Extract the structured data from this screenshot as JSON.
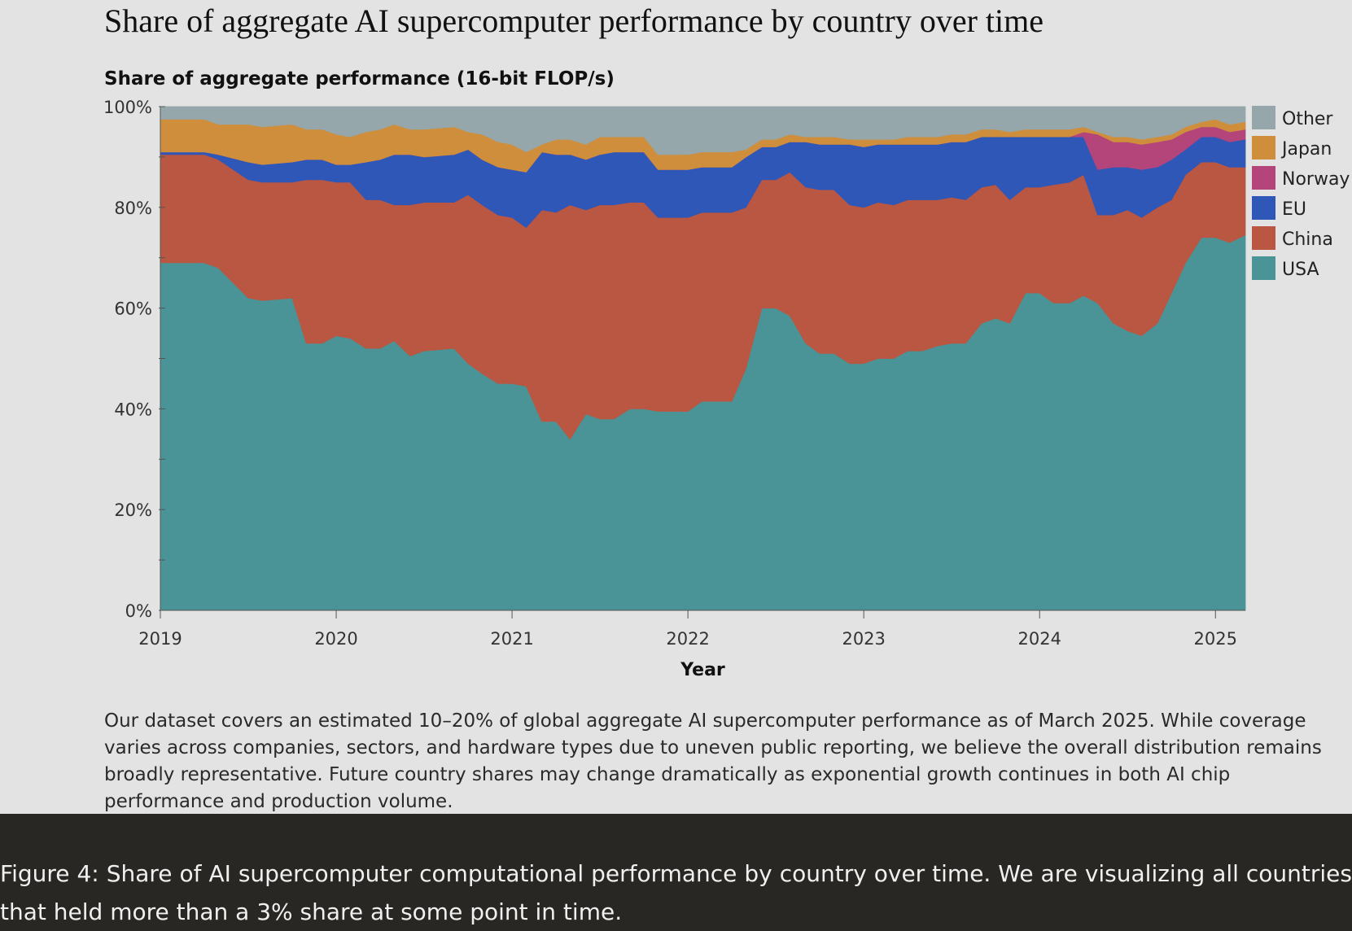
{
  "header": {
    "title": "Share of aggregate AI supercomputer performance by country over time"
  },
  "chart_data": {
    "type": "area",
    "stacked": true,
    "title": "Share of aggregate AI supercomputer performance by country over time",
    "ylabel": "Share of aggregate performance (16-bit FLOP/s)",
    "xlabel": "Year",
    "xlim": [
      2019.0,
      2025.17
    ],
    "ylim": [
      0,
      100
    ],
    "x_ticks": [
      "2019",
      "2020",
      "2021",
      "2022",
      "2023",
      "2024",
      "2025"
    ],
    "y_ticks": [
      "0%",
      "20%",
      "40%",
      "60%",
      "80%",
      "100%"
    ],
    "legend_position": "right",
    "grid": false,
    "x": [
      2019.0,
      2019.25,
      2019.33,
      2019.5,
      2019.58,
      2019.75,
      2019.83,
      2019.92,
      2020.0,
      2020.08,
      2020.17,
      2020.25,
      2020.33,
      2020.42,
      2020.5,
      2020.67,
      2020.75,
      2020.83,
      2020.92,
      2021.0,
      2021.08,
      2021.17,
      2021.25,
      2021.33,
      2021.42,
      2021.5,
      2021.58,
      2021.67,
      2021.75,
      2021.83,
      2022.0,
      2022.08,
      2022.25,
      2022.33,
      2022.42,
      2022.5,
      2022.58,
      2022.67,
      2022.75,
      2022.83,
      2022.92,
      2023.0,
      2023.08,
      2023.17,
      2023.25,
      2023.33,
      2023.42,
      2023.5,
      2023.58,
      2023.67,
      2023.75,
      2023.83,
      2023.92,
      2024.0,
      2024.08,
      2024.17,
      2024.25,
      2024.33,
      2024.42,
      2024.5,
      2024.58,
      2024.67,
      2024.75,
      2024.83,
      2024.92,
      2025.0,
      2025.08,
      2025.17
    ],
    "series": [
      {
        "name": "USA",
        "color": "#4a9396",
        "values": [
          69,
          69,
          68,
          62,
          61.5,
          62,
          53,
          53,
          54.5,
          54,
          52,
          52,
          53.5,
          50.5,
          51.5,
          52,
          49,
          47,
          45,
          45,
          44.5,
          37.5,
          37.5,
          34,
          39,
          38,
          38,
          40,
          40,
          39.5,
          39.5,
          41.5,
          41.5,
          48,
          60,
          60,
          58.5,
          53,
          51,
          51,
          49,
          49,
          50,
          50,
          51.5,
          51.5,
          52.5,
          53,
          53,
          57,
          58,
          57,
          63,
          63,
          61,
          61,
          62.5,
          61,
          57,
          55.5,
          54.5,
          57,
          63,
          69,
          74,
          74,
          73,
          74.5
        ]
      },
      {
        "name": "China",
        "color": "#b95742",
        "values": [
          21.5,
          21.5,
          21.5,
          23.5,
          23.5,
          23,
          32.5,
          32.5,
          30.5,
          31,
          29.5,
          29.5,
          27,
          30,
          29.5,
          29,
          33.5,
          33.5,
          33.5,
          33,
          31.5,
          42,
          41.5,
          46.5,
          40.5,
          42.5,
          42.5,
          41,
          41,
          38.5,
          38.5,
          37.5,
          37.5,
          32,
          25.5,
          25.5,
          28.5,
          31,
          32.5,
          32.5,
          31.5,
          31,
          31,
          30.5,
          30,
          30,
          29,
          29,
          28.5,
          27,
          26.5,
          24.5,
          21,
          21,
          23.5,
          24,
          24,
          17.5,
          21.5,
          24,
          23.5,
          23,
          18.5,
          17.5,
          15,
          15,
          15,
          13.5
        ]
      },
      {
        "name": "EU",
        "color": "#2e57b8",
        "values": [
          0.5,
          0.5,
          1,
          3.5,
          3.5,
          4,
          4,
          4,
          3.5,
          3.5,
          7.5,
          8,
          10,
          10,
          9,
          9.5,
          9,
          9,
          9.5,
          9.5,
          11,
          11.5,
          11.5,
          10,
          10,
          10,
          10.5,
          10,
          10,
          9.5,
          9.5,
          9,
          9,
          10,
          6.5,
          6.5,
          6,
          9,
          9,
          9,
          12,
          12,
          11.5,
          12,
          11,
          11,
          11,
          11,
          11.5,
          10,
          9.5,
          12.5,
          10,
          10,
          9.5,
          9,
          7.5,
          9,
          9.5,
          8.5,
          9.5,
          8,
          8,
          5,
          5,
          5,
          5,
          5.5
        ]
      },
      {
        "name": "Norway",
        "color": "#b3457b",
        "values": [
          0,
          0,
          0,
          0,
          0,
          0,
          0,
          0,
          0,
          0,
          0,
          0,
          0,
          0,
          0,
          0,
          0,
          0,
          0,
          0,
          0,
          0,
          0,
          0,
          0,
          0,
          0,
          0,
          0,
          0,
          0,
          0,
          0,
          0,
          0,
          0,
          0,
          0,
          0,
          0,
          0,
          0,
          0,
          0,
          0,
          0,
          0,
          0,
          0,
          0,
          0,
          0,
          0,
          0,
          0,
          0,
          1,
          7,
          5,
          5,
          5,
          5,
          4,
          3.5,
          2,
          2,
          2,
          2
        ]
      },
      {
        "name": "Japan",
        "color": "#cf8e3c",
        "values": [
          6.5,
          6.5,
          6,
          7.5,
          7.5,
          7.5,
          6,
          6,
          6,
          5.5,
          6,
          6,
          6,
          5,
          5.5,
          5.5,
          3.5,
          5,
          5,
          5,
          4,
          1.5,
          3,
          3,
          3,
          3.5,
          3,
          3,
          3,
          3,
          3,
          3,
          3,
          1.5,
          1.5,
          1.5,
          1.5,
          1,
          1.5,
          1.5,
          1,
          1.5,
          1,
          1,
          1.5,
          1.5,
          1.5,
          1.5,
          1.5,
          1.5,
          1.5,
          1,
          1.5,
          1.5,
          1.5,
          1.5,
          1,
          0.5,
          1,
          1,
          1,
          1,
          1,
          1,
          1,
          1.5,
          1.5,
          1.5
        ]
      },
      {
        "name": "Other",
        "color": "#95a7ab",
        "values": [
          2.5,
          2.5,
          3.5,
          3.5,
          4,
          3.5,
          4.5,
          4.5,
          5.5,
          6,
          5,
          4.5,
          3.5,
          4.5,
          4.5,
          4,
          5,
          5.5,
          7,
          7.5,
          9,
          7.5,
          6.5,
          6.5,
          7.5,
          6,
          6,
          6,
          6,
          9.5,
          9.5,
          9,
          9,
          8.5,
          6.5,
          6.5,
          5.5,
          6,
          6,
          6,
          6.5,
          6.5,
          6.5,
          6.5,
          6,
          6,
          6,
          5.5,
          5.5,
          4.5,
          4.5,
          5,
          4.5,
          4.5,
          4.5,
          4.5,
          4,
          5,
          6,
          6,
          6.5,
          6,
          5.5,
          4,
          3,
          2.5,
          3.5,
          3
        ]
      }
    ],
    "note": "Our dataset covers an estimated 10–20% of global aggregate AI supercomputer performance as of March 2025. While coverage varies across companies, sectors, and hardware types due to uneven public reporting, we believe the overall distribution remains broadly representative. Future country shares may change dramatically as exponential growth continues in both AI chip performance and production volume."
  },
  "caption": "Figure 4: Share of AI supercomputer computational performance by country over time. We are visualizing all countries that held more than a 3% share at some point in time."
}
